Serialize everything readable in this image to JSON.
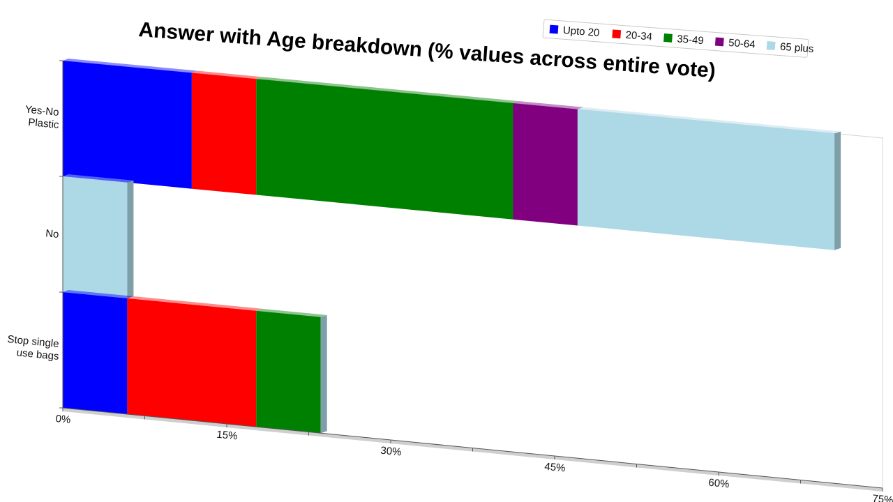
{
  "chart_data": {
    "type": "bar",
    "orientation": "horizontal",
    "stacked": true,
    "perspective_3d": true,
    "title": "Answer with Age breakdown (% values across entire vote)",
    "categories": [
      "Yes-No Plastic",
      "No",
      "Stop single use bags"
    ],
    "category_label_lines": [
      [
        "Yes-No",
        "Plastic"
      ],
      [
        "No"
      ],
      [
        "Stop single",
        "use bags"
      ]
    ],
    "x_ticks": [
      0,
      15,
      30,
      45,
      60,
      75
    ],
    "x_tick_labels": [
      "0%",
      "15%",
      "30%",
      "45%",
      "60%",
      "75%"
    ],
    "xlim": [
      0,
      75
    ],
    "series": [
      {
        "name": "Upto 20",
        "color": "#0000ff",
        "values": [
          11.8,
          0,
          5.9
        ]
      },
      {
        "name": "20-34",
        "color": "#ff0000",
        "values": [
          5.9,
          0,
          11.8
        ]
      },
      {
        "name": "35-49",
        "color": "#008000",
        "values": [
          23.5,
          0,
          5.9
        ]
      },
      {
        "name": "50-64",
        "color": "#800080",
        "values": [
          5.9,
          0,
          0
        ]
      },
      {
        "name": "65 plus",
        "color": "#add8e6",
        "values": [
          23.5,
          5.9,
          0
        ]
      }
    ],
    "legend_position": "top-right",
    "grid": false
  }
}
